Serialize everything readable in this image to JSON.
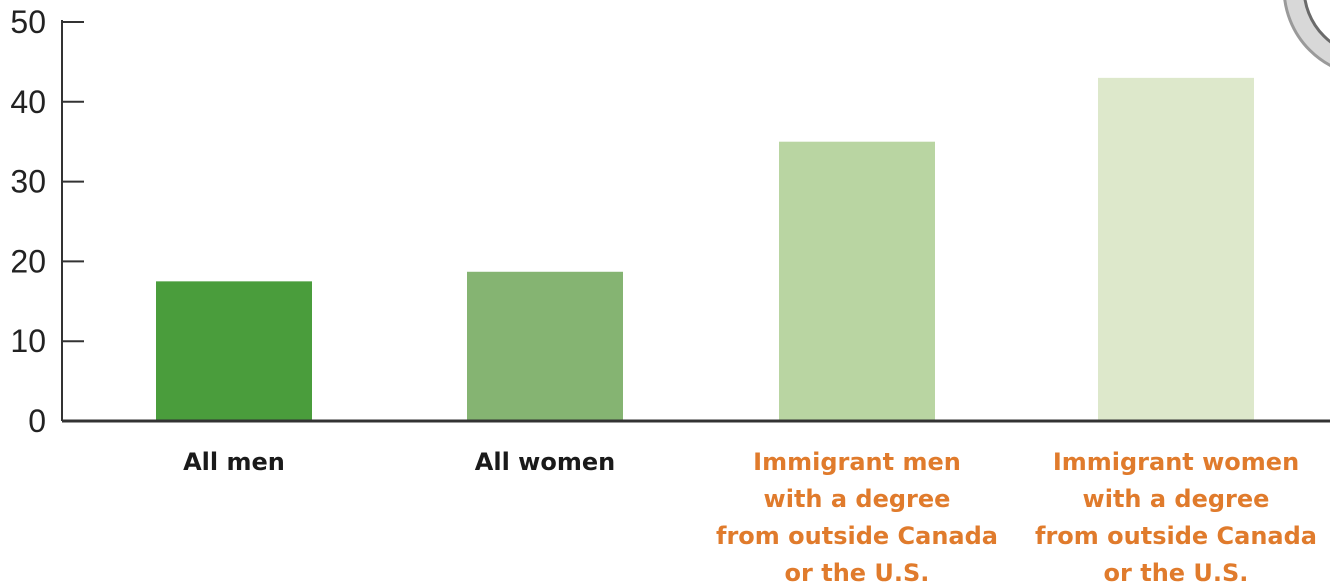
{
  "chart_data": {
    "type": "bar",
    "title": "",
    "xlabel": "",
    "ylabel": "",
    "ylim": [
      0,
      50
    ],
    "yticks": [
      0,
      10,
      20,
      30,
      40,
      50
    ],
    "grid": false,
    "categories": [
      [
        "All men"
      ],
      [
        "All women"
      ],
      [
        "Immigrant men",
        "with a degree",
        "from outside Canada",
        "or the U.S."
      ],
      [
        "Immigrant women",
        "with a degree",
        "from outside Canada",
        "or the U.S."
      ]
    ],
    "values": [
      17.5,
      18.7,
      35,
      43
    ],
    "bar_colors": [
      "#4a9d3c",
      "#85b472",
      "#b9d5a2",
      "#dde8cb"
    ],
    "label_colors": [
      "#1a1a1a",
      "#1a1a1a",
      "#e07b2c",
      "#e07b2c"
    ]
  },
  "colors": {
    "axis": "#333333",
    "text": "#222222"
  },
  "decor": {
    "corner": "partial-circular-emblem"
  }
}
